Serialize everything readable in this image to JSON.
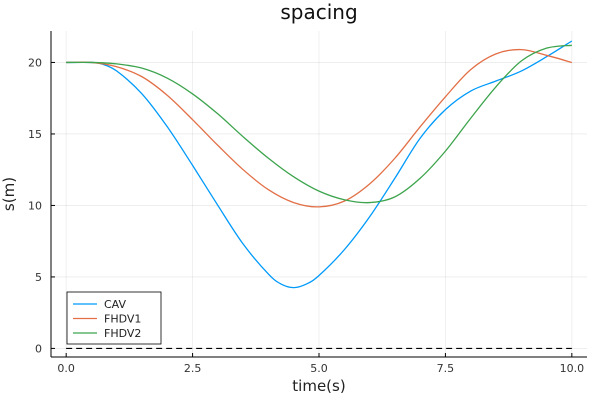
{
  "chart_data": {
    "type": "line",
    "title": "spacing",
    "xlabel": "time(s)",
    "ylabel": "s(m)",
    "xlim": [
      -0.3,
      10.3
    ],
    "ylim": [
      -0.6,
      22.2
    ],
    "xticks": [
      0,
      2.5,
      5,
      7.5,
      10
    ],
    "xtick_labels": [
      "0.0",
      "2.5",
      "5.0",
      "7.5",
      "10.0"
    ],
    "yticks": [
      0,
      5,
      10,
      15,
      20
    ],
    "ytick_labels": [
      "0",
      "5",
      "10",
      "15",
      "20"
    ],
    "grid": true,
    "legend_position": "bottom-left",
    "series": [
      {
        "name": "CAV",
        "color": "#009AFA",
        "x": [
          0,
          0.5,
          0.7,
          1.0,
          1.5,
          2.0,
          2.5,
          3.0,
          3.5,
          4.0,
          4.25,
          4.5,
          4.75,
          5.0,
          5.5,
          6.0,
          6.5,
          7.0,
          7.5,
          8.0,
          8.5,
          9.0,
          9.5,
          10.0
        ],
        "y": [
          20.0,
          20.0,
          19.9,
          19.4,
          17.8,
          15.5,
          12.8,
          10.0,
          7.3,
          5.2,
          4.5,
          4.25,
          4.5,
          5.1,
          6.9,
          9.2,
          11.9,
          14.7,
          16.7,
          18.0,
          18.7,
          19.4,
          20.4,
          21.5
        ]
      },
      {
        "name": "FHDV1",
        "color": "#E26F46",
        "x": [
          0,
          0.5,
          1.0,
          1.5,
          2.0,
          2.5,
          3.0,
          3.5,
          4.0,
          4.5,
          5.0,
          5.5,
          6.0,
          6.5,
          7.0,
          7.5,
          8.0,
          8.5,
          9.0,
          9.5,
          10.0
        ],
        "y": [
          20.0,
          20.0,
          19.7,
          19.0,
          17.7,
          16.0,
          14.2,
          12.5,
          11.1,
          10.2,
          9.9,
          10.3,
          11.5,
          13.3,
          15.5,
          17.6,
          19.5,
          20.6,
          20.9,
          20.5,
          20.0
        ]
      },
      {
        "name": "FHDV2",
        "color": "#3DA44D",
        "x": [
          0,
          0.5,
          1.0,
          1.5,
          2.0,
          2.5,
          3.0,
          3.5,
          4.0,
          4.5,
          5.0,
          5.5,
          6.0,
          6.5,
          7.0,
          7.5,
          8.0,
          8.5,
          9.0,
          9.5,
          10.0
        ],
        "y": [
          20.0,
          20.0,
          19.9,
          19.6,
          18.9,
          17.8,
          16.4,
          14.8,
          13.3,
          12.0,
          11.0,
          10.4,
          10.2,
          10.6,
          11.9,
          13.8,
          16.1,
          18.3,
          20.1,
          21.0,
          21.2
        ]
      }
    ],
    "reference_line": {
      "y": 0,
      "style": "dashed",
      "color": "#000000"
    }
  }
}
